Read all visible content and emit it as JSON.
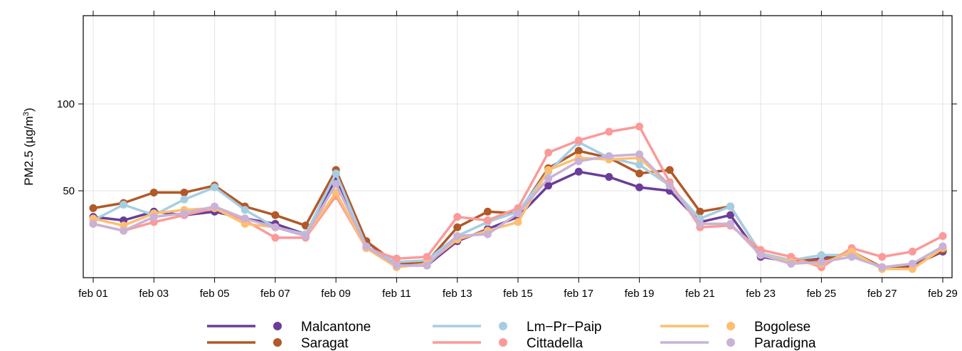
{
  "chart_data": {
    "type": "line",
    "title": "",
    "xlabel": "",
    "ylabel": "PM2.5 (µg/m³)",
    "ylabel_parts": {
      "base": "PM2.5 (µg/m",
      "sup": "3",
      "end": ")"
    },
    "x": [
      "feb 01",
      "feb 02",
      "feb 03",
      "feb 04",
      "feb 05",
      "feb 06",
      "feb 07",
      "feb 08",
      "feb 09",
      "feb 10",
      "feb 11",
      "feb 12",
      "feb 13",
      "feb 14",
      "feb 15",
      "feb 16",
      "feb 17",
      "feb 18",
      "feb 19",
      "feb 20",
      "feb 21",
      "feb 22",
      "feb 23",
      "feb 24",
      "feb 25",
      "feb 26",
      "feb 27",
      "feb 28",
      "feb 29"
    ],
    "x_tick_labels": [
      "feb 01",
      "feb 03",
      "feb 05",
      "feb 07",
      "feb 09",
      "feb 11",
      "feb 13",
      "feb 15",
      "feb 17",
      "feb 19",
      "feb 21",
      "feb 23",
      "feb 25",
      "feb 27",
      "feb 29"
    ],
    "y_ticks": [
      50,
      100
    ],
    "ylim": [
      0,
      150
    ],
    "grid": true,
    "legend_position": "bottom",
    "series": [
      {
        "name": "Malcantone",
        "color": "#6A3D9A",
        "values": [
          35,
          33,
          38,
          36,
          38,
          34,
          31,
          25,
          57,
          21,
          7,
          7,
          21,
          28,
          35,
          53,
          61,
          58,
          52,
          50,
          32,
          36,
          12,
          9,
          11,
          14,
          6,
          7,
          15
        ]
      },
      {
        "name": "Saragat",
        "color": "#B15928",
        "values": [
          40,
          43,
          49,
          49,
          53,
          41,
          36,
          30,
          62,
          21,
          8,
          9,
          29,
          38,
          37,
          63,
          73,
          69,
          60,
          62,
          38,
          41,
          14,
          10,
          10,
          15,
          6,
          6,
          16
        ]
      },
      {
        "name": "Lm−Pr−Paip",
        "color": "#A6CEE3",
        "values": [
          33,
          42,
          36,
          45,
          52,
          39,
          29,
          25,
          60,
          18,
          9,
          10,
          24,
          32,
          38,
          61,
          78,
          69,
          65,
          53,
          34,
          41,
          14,
          10,
          13,
          13,
          6,
          8,
          18
        ]
      },
      {
        "name": "Cittadella",
        "color": "#FB9A99",
        "values": [
          31,
          27,
          32,
          36,
          40,
          33,
          23,
          23,
          47,
          17,
          11,
          12,
          35,
          33,
          40,
          72,
          79,
          84,
          87,
          55,
          29,
          30,
          16,
          12,
          6,
          17,
          12,
          15,
          24
        ]
      },
      {
        "name": "Bogolese",
        "color": "#FDBF6F",
        "values": [
          34,
          30,
          37,
          39,
          40,
          31,
          29,
          24,
          49,
          17,
          6,
          8,
          22,
          27,
          32,
          62,
          69,
          68,
          69,
          53,
          31,
          31,
          13,
          9,
          8,
          15,
          5,
          5,
          17
        ]
      },
      {
        "name": "Paradigna",
        "color": "#CAB2D6",
        "values": [
          31,
          27,
          35,
          37,
          41,
          34,
          29,
          24,
          54,
          18,
          7,
          7,
          24,
          25,
          37,
          57,
          67,
          70,
          71,
          53,
          31,
          31,
          13,
          8,
          9,
          12,
          6,
          8,
          18
        ]
      }
    ]
  }
}
